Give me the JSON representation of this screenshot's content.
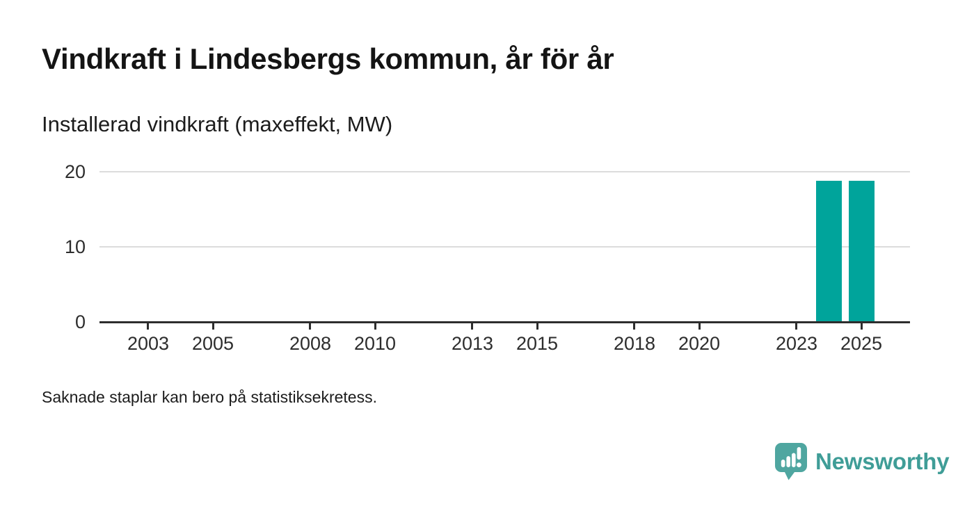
{
  "header": {
    "title": "Vindkraft i Lindesbergs kommun, år för år",
    "subtitle": "Installerad vindkraft (maxeffekt, MW)"
  },
  "footer": {
    "note": "Saknade staplar kan bero på statistiksekretess."
  },
  "branding": {
    "name": "Newsworthy",
    "icon": "newsworthy-speech-bubble-bar-chart-icon",
    "icon_color": "#4fa6a0",
    "text_color": "#3f9d97"
  },
  "chart_data": {
    "type": "bar",
    "title": "Vindkraft i Lindesbergs kommun, år för år",
    "subtitle": "Installerad vindkraft (maxeffekt, MW)",
    "unit": "MW",
    "x_domain_years": [
      2002,
      2026
    ],
    "x_tick_years": [
      2003,
      2005,
      2008,
      2010,
      2013,
      2015,
      2018,
      2020,
      2023,
      2025
    ],
    "y_ticks": [
      0,
      10,
      20
    ],
    "ylim": [
      0,
      20
    ],
    "grid": "horizontal",
    "legend": "none",
    "bar_color": "#00a49b",
    "axis_color": "#2d2d2d",
    "gridline_color": "#dcdcdc",
    "points": [
      {
        "year": 2024,
        "value": 18.8
      },
      {
        "year": 2025,
        "value": 18.8
      }
    ],
    "note": "Saknade staplar kan bero på statistiksekretess."
  }
}
